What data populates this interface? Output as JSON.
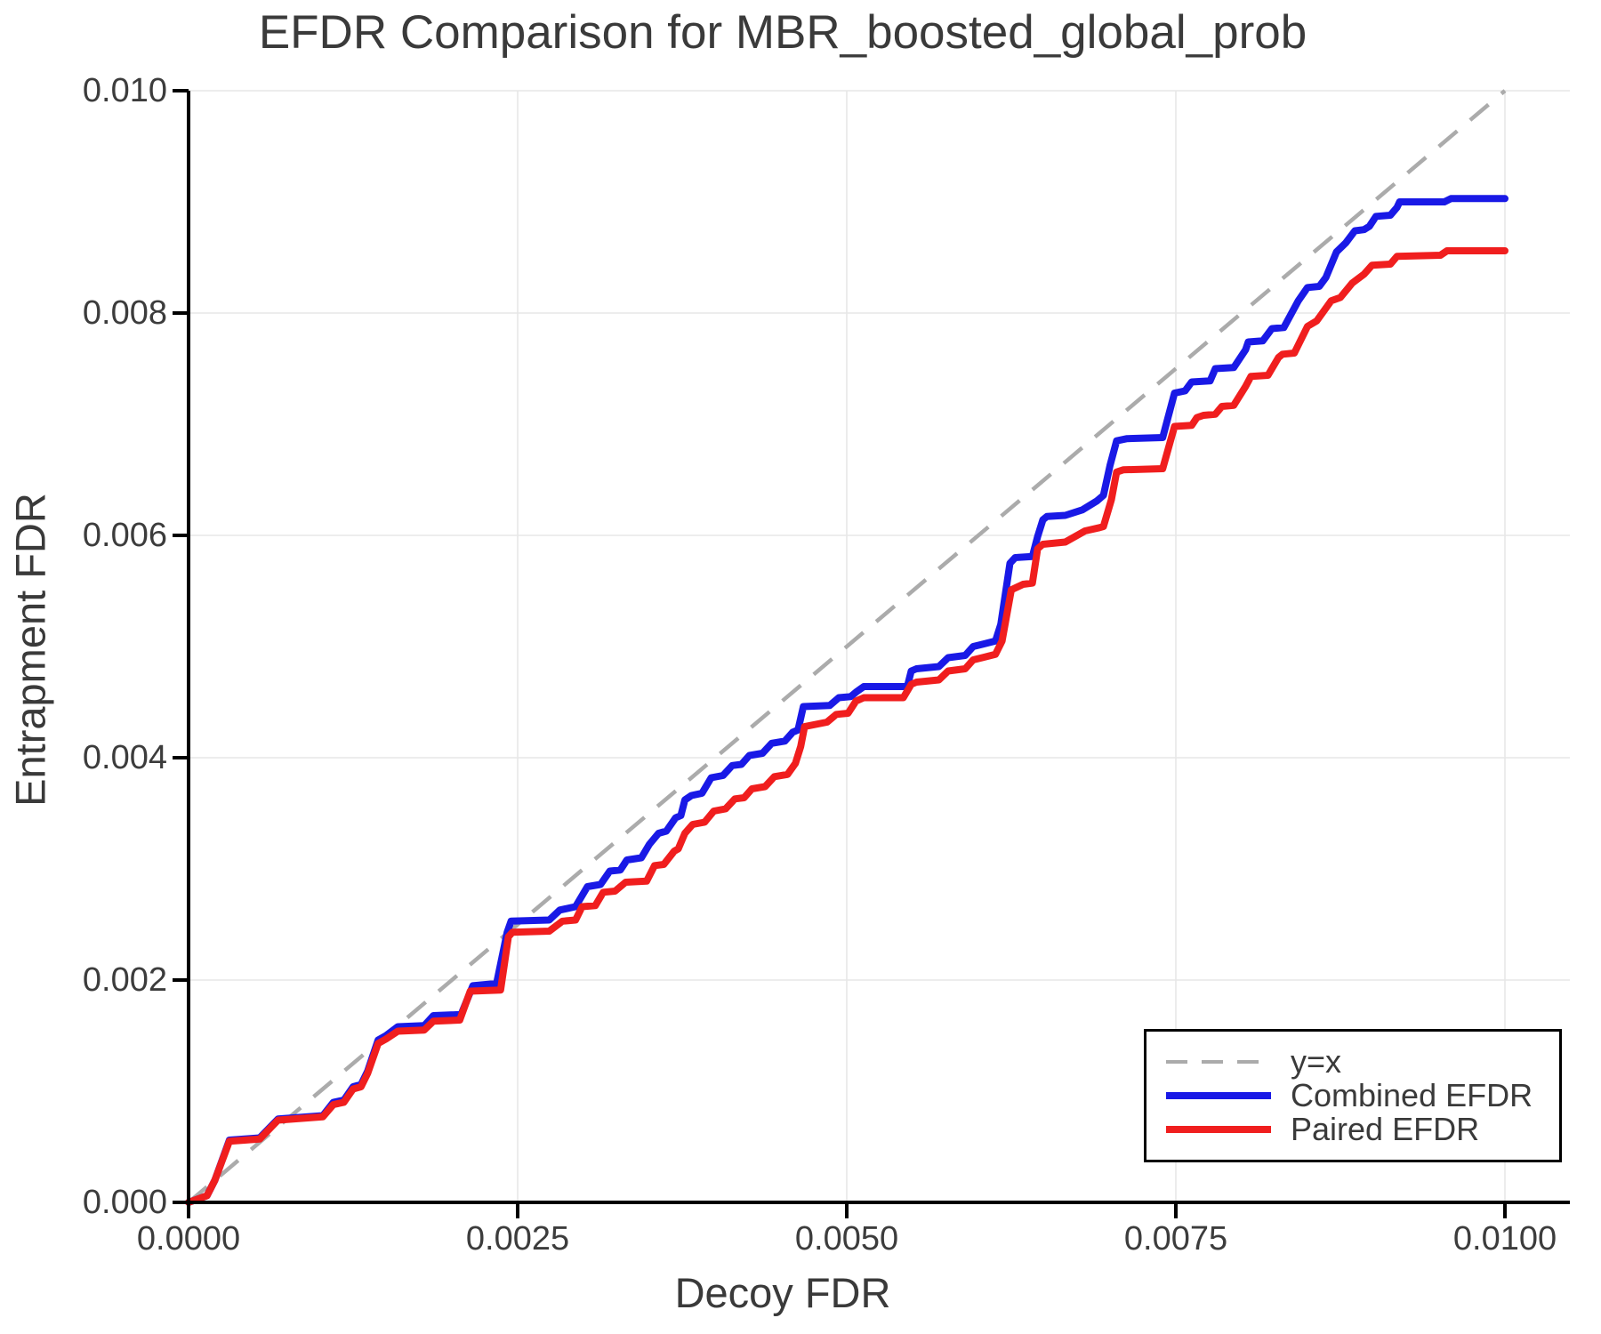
{
  "title": "EFDR Comparison for MBR_boosted_global_prob",
  "axes": {
    "xlabel": "Decoy FDR",
    "ylabel": "Entrapment FDR"
  },
  "colors": {
    "combined": "#1919e6",
    "paired": "#f01e1e",
    "diagonal": "#ababab",
    "grid": "#e7e7e7",
    "spine": "#000000",
    "text": "#3a3a3a"
  },
  "legend": {
    "items": [
      {
        "label": "y=x",
        "color": "#ababab",
        "dashed": true,
        "weight": 4
      },
      {
        "label": "Combined EFDR",
        "color": "#1919e6",
        "dashed": false,
        "weight": 8
      },
      {
        "label": "Paired EFDR",
        "color": "#f01e1e",
        "dashed": false,
        "weight": 8
      }
    ]
  },
  "chart_data": {
    "type": "line",
    "title": "EFDR Comparison for MBR_boosted_global_prob",
    "xlabel": "Decoy FDR",
    "ylabel": "Entrapment FDR",
    "xlim": [
      0,
      0.0105
    ],
    "ylim": [
      0,
      0.01
    ],
    "grid": true,
    "legend_position": "lower right",
    "x_ticks": {
      "values": [
        0,
        0.0025,
        0.005,
        0.0075,
        0.01
      ],
      "labels": [
        "0.0000",
        "0.0025",
        "0.0050",
        "0.0075",
        "0.0100"
      ]
    },
    "y_ticks": {
      "values": [
        0,
        0.002,
        0.004,
        0.006,
        0.008,
        0.01
      ],
      "labels": [
        "0.000",
        "0.002",
        "0.004",
        "0.006",
        "0.008",
        "0.010"
      ]
    },
    "reference_line": {
      "name": "y=x",
      "from": [
        0,
        0
      ],
      "to": [
        0.01,
        0.01
      ],
      "style": "dashed",
      "color": "#ababab"
    },
    "series": [
      {
        "name": "Combined EFDR",
        "color": "#1919e6",
        "points": [
          [
            0,
            0
          ],
          [
            0.00014,
            6e-05
          ],
          [
            0.0002,
            0.0002
          ],
          [
            0.00031,
            0.00056
          ],
          [
            0.00054,
            0.00058
          ],
          [
            0.00068,
            0.00075
          ],
          [
            0.00102,
            0.00078
          ],
          [
            0.0011,
            0.0009
          ],
          [
            0.00118,
            0.00092
          ],
          [
            0.00125,
            0.00104
          ],
          [
            0.00131,
            0.00106
          ],
          [
            0.00136,
            0.00118
          ],
          [
            0.00144,
            0.00146
          ],
          [
            0.0015,
            0.0015
          ],
          [
            0.00159,
            0.00158
          ],
          [
            0.00179,
            0.00159
          ],
          [
            0.00186,
            0.00168
          ],
          [
            0.00207,
            0.00169
          ],
          [
            0.00216,
            0.00195
          ],
          [
            0.00234,
            0.00197
          ],
          [
            0.00242,
            0.00243
          ],
          [
            0.00245,
            0.00253
          ],
          [
            0.00274,
            0.00254
          ],
          [
            0.00282,
            0.00263
          ],
          [
            0.00294,
            0.00266
          ],
          [
            0.00303,
            0.00284
          ],
          [
            0.00313,
            0.00286
          ],
          [
            0.0032,
            0.00298
          ],
          [
            0.00328,
            0.00299
          ],
          [
            0.00333,
            0.00308
          ],
          [
            0.00344,
            0.0031
          ],
          [
            0.0035,
            0.00322
          ],
          [
            0.00357,
            0.00332
          ],
          [
            0.00363,
            0.00334
          ],
          [
            0.0037,
            0.00346
          ],
          [
            0.00374,
            0.00348
          ],
          [
            0.00377,
            0.00362
          ],
          [
            0.00382,
            0.00366
          ],
          [
            0.0039,
            0.00368
          ],
          [
            0.00397,
            0.00382
          ],
          [
            0.00406,
            0.00384
          ],
          [
            0.00413,
            0.00393
          ],
          [
            0.0042,
            0.00394
          ],
          [
            0.00426,
            0.00402
          ],
          [
            0.00436,
            0.00404
          ],
          [
            0.00443,
            0.00413
          ],
          [
            0.00453,
            0.00415
          ],
          [
            0.00459,
            0.00423
          ],
          [
            0.00463,
            0.00425
          ],
          [
            0.00467,
            0.00446
          ],
          [
            0.00487,
            0.00447
          ],
          [
            0.00494,
            0.00454
          ],
          [
            0.00503,
            0.00455
          ],
          [
            0.00507,
            0.00459
          ],
          [
            0.00513,
            0.00464
          ],
          [
            0.00546,
            0.00464
          ],
          [
            0.00549,
            0.00478
          ],
          [
            0.00553,
            0.0048
          ],
          [
            0.0057,
            0.00482
          ],
          [
            0.00577,
            0.0049
          ],
          [
            0.0059,
            0.00492
          ],
          [
            0.00596,
            0.005
          ],
          [
            0.00603,
            0.00502
          ],
          [
            0.00613,
            0.00505
          ],
          [
            0.00617,
            0.0052
          ],
          [
            0.00624,
            0.00575
          ],
          [
            0.00628,
            0.0058
          ],
          [
            0.00641,
            0.00581
          ],
          [
            0.00645,
            0.00599
          ],
          [
            0.00649,
            0.00614
          ],
          [
            0.00652,
            0.00617
          ],
          [
            0.00666,
            0.00618
          ],
          [
            0.00679,
            0.00623
          ],
          [
            0.0069,
            0.00631
          ],
          [
            0.00695,
            0.00636
          ],
          [
            0.007,
            0.00663
          ],
          [
            0.00705,
            0.00685
          ],
          [
            0.00713,
            0.00687
          ],
          [
            0.0074,
            0.00688
          ],
          [
            0.00749,
            0.00728
          ],
          [
            0.00757,
            0.0073
          ],
          [
            0.00762,
            0.00738
          ],
          [
            0.00776,
            0.00739
          ],
          [
            0.0078,
            0.0075
          ],
          [
            0.00794,
            0.00751
          ],
          [
            0.00803,
            0.00767
          ],
          [
            0.00805,
            0.00774
          ],
          [
            0.00816,
            0.00775
          ],
          [
            0.00823,
            0.00786
          ],
          [
            0.00832,
            0.00787
          ],
          [
            0.00843,
            0.00811
          ],
          [
            0.0085,
            0.00823
          ],
          [
            0.00859,
            0.00824
          ],
          [
            0.00864,
            0.00832
          ],
          [
            0.00872,
            0.00855
          ],
          [
            0.00879,
            0.00863
          ],
          [
            0.00886,
            0.00874
          ],
          [
            0.00893,
            0.00875
          ],
          [
            0.00897,
            0.00878
          ],
          [
            0.00902,
            0.00887
          ],
          [
            0.00913,
            0.00888
          ],
          [
            0.00918,
            0.00895
          ],
          [
            0.0092,
            0.009
          ],
          [
            0.00954,
            0.009
          ],
          [
            0.00959,
            0.00903
          ],
          [
            0.01,
            0.00903
          ]
        ]
      },
      {
        "name": "Paired EFDR",
        "color": "#f01e1e",
        "points": [
          [
            0,
            0
          ],
          [
            0.00014,
            6e-05
          ],
          [
            0.0002,
            0.0002
          ],
          [
            0.00031,
            0.00055
          ],
          [
            0.00054,
            0.00057
          ],
          [
            0.00068,
            0.00074
          ],
          [
            0.00102,
            0.00077
          ],
          [
            0.0011,
            0.00088
          ],
          [
            0.00118,
            0.0009
          ],
          [
            0.00125,
            0.00102
          ],
          [
            0.00131,
            0.00104
          ],
          [
            0.00136,
            0.00116
          ],
          [
            0.00144,
            0.00143
          ],
          [
            0.0015,
            0.00147
          ],
          [
            0.00159,
            0.00154
          ],
          [
            0.00179,
            0.00155
          ],
          [
            0.00186,
            0.00163
          ],
          [
            0.00206,
            0.00164
          ],
          [
            0.00214,
            0.0019
          ],
          [
            0.00237,
            0.00191
          ],
          [
            0.00243,
            0.00239
          ],
          [
            0.00246,
            0.00243
          ],
          [
            0.00274,
            0.00244
          ],
          [
            0.00284,
            0.00253
          ],
          [
            0.00294,
            0.00254
          ],
          [
            0.00299,
            0.00266
          ],
          [
            0.00309,
            0.00267
          ],
          [
            0.00315,
            0.00279
          ],
          [
            0.00324,
            0.0028
          ],
          [
            0.00332,
            0.00288
          ],
          [
            0.00348,
            0.00289
          ],
          [
            0.00354,
            0.00303
          ],
          [
            0.00361,
            0.00304
          ],
          [
            0.00369,
            0.00316
          ],
          [
            0.00372,
            0.00318
          ],
          [
            0.00377,
            0.00332
          ],
          [
            0.00383,
            0.0034
          ],
          [
            0.00392,
            0.00342
          ],
          [
            0.00399,
            0.00352
          ],
          [
            0.00408,
            0.00354
          ],
          [
            0.00415,
            0.00363
          ],
          [
            0.00422,
            0.00364
          ],
          [
            0.00428,
            0.00372
          ],
          [
            0.00438,
            0.00374
          ],
          [
            0.00445,
            0.00383
          ],
          [
            0.00455,
            0.00385
          ],
          [
            0.00461,
            0.00395
          ],
          [
            0.00465,
            0.0041
          ],
          [
            0.00468,
            0.00428
          ],
          [
            0.00485,
            0.00432
          ],
          [
            0.00492,
            0.00439
          ],
          [
            0.00501,
            0.0044
          ],
          [
            0.00507,
            0.00451
          ],
          [
            0.00513,
            0.00454
          ],
          [
            0.00543,
            0.00454
          ],
          [
            0.00549,
            0.00466
          ],
          [
            0.00553,
            0.00468
          ],
          [
            0.0057,
            0.0047
          ],
          [
            0.00577,
            0.00478
          ],
          [
            0.0059,
            0.0048
          ],
          [
            0.00596,
            0.00488
          ],
          [
            0.00603,
            0.0049
          ],
          [
            0.00613,
            0.00493
          ],
          [
            0.00618,
            0.00505
          ],
          [
            0.00625,
            0.00551
          ],
          [
            0.00634,
            0.00556
          ],
          [
            0.00641,
            0.00557
          ],
          [
            0.00645,
            0.00588
          ],
          [
            0.00649,
            0.00592
          ],
          [
            0.00666,
            0.00594
          ],
          [
            0.00681,
            0.00604
          ],
          [
            0.00692,
            0.00607
          ],
          [
            0.00695,
            0.00608
          ],
          [
            0.00701,
            0.00632
          ],
          [
            0.00705,
            0.00657
          ],
          [
            0.0071,
            0.00659
          ],
          [
            0.0074,
            0.0066
          ],
          [
            0.00749,
            0.00698
          ],
          [
            0.00762,
            0.00699
          ],
          [
            0.00766,
            0.00706
          ],
          [
            0.00771,
            0.00708
          ],
          [
            0.0078,
            0.00709
          ],
          [
            0.00785,
            0.00716
          ],
          [
            0.00794,
            0.00717
          ],
          [
            0.00803,
            0.00734
          ],
          [
            0.00807,
            0.00743
          ],
          [
            0.0082,
            0.00744
          ],
          [
            0.00828,
            0.0076
          ],
          [
            0.00831,
            0.00763
          ],
          [
            0.0084,
            0.00764
          ],
          [
            0.0085,
            0.00788
          ],
          [
            0.00857,
            0.00793
          ],
          [
            0.00868,
            0.00811
          ],
          [
            0.00875,
            0.00814
          ],
          [
            0.00884,
            0.00827
          ],
          [
            0.00893,
            0.00835
          ],
          [
            0.00899,
            0.00843
          ],
          [
            0.00913,
            0.00844
          ],
          [
            0.00918,
            0.00851
          ],
          [
            0.00951,
            0.00852
          ],
          [
            0.00956,
            0.00856
          ],
          [
            0.01,
            0.00856
          ]
        ]
      }
    ]
  }
}
